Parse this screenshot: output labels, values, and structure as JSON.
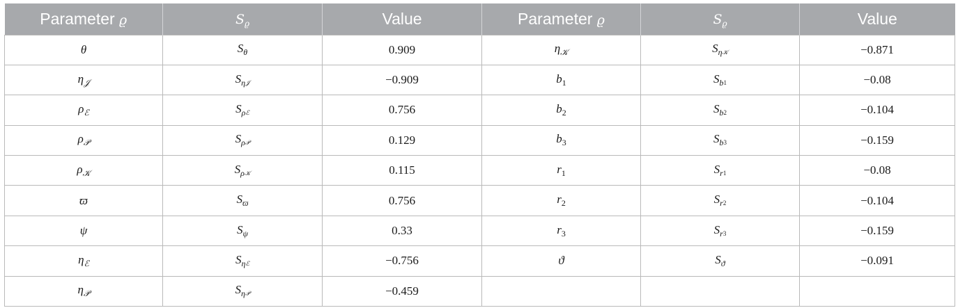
{
  "table": {
    "headers": [
      "Parameter ϱ",
      "S_ϱ",
      "Value",
      "Parameter ϱ",
      "S_ϱ",
      "Value"
    ],
    "header_parts": [
      {
        "text": "Parameter",
        "sym": "ϱ"
      },
      {
        "base": "S",
        "sub": "ϱ"
      },
      {
        "text": "Value"
      },
      {
        "text": "Parameter",
        "sym": "ϱ"
      },
      {
        "base": "S",
        "sub": "ϱ"
      },
      {
        "text": "Value"
      }
    ],
    "rows": [
      [
        {
          "base": "θ"
        },
        {
          "base": "S",
          "sub": "θ"
        },
        {
          "value": "0.909"
        },
        {
          "base": "η",
          "sub": "𝒦"
        },
        {
          "base": "S",
          "sub": "η",
          "sub2": "𝒦"
        },
        {
          "value": "−0.871"
        }
      ],
      [
        {
          "base": "η",
          "sub": "𝒥"
        },
        {
          "base": "S",
          "sub": "η",
          "sub2": "𝒥"
        },
        {
          "value": "−0.909"
        },
        {
          "base": "b",
          "sub": "1"
        },
        {
          "base": "S",
          "sub": "b",
          "sub2": "1"
        },
        {
          "value": "−0.08"
        }
      ],
      [
        {
          "base": "ρ",
          "sub": "ℰ"
        },
        {
          "base": "S",
          "sub": "ρ",
          "sub2": "ℰ"
        },
        {
          "value": "0.756"
        },
        {
          "base": "b",
          "sub": "2"
        },
        {
          "base": "S",
          "sub": "b",
          "sub2": "2"
        },
        {
          "value": "−0.104"
        }
      ],
      [
        {
          "base": "ρ",
          "sub": "𝒫"
        },
        {
          "base": "S",
          "sub": "ρ",
          "sub2": "𝒫"
        },
        {
          "value": "0.129"
        },
        {
          "base": "b",
          "sub": "3"
        },
        {
          "base": "S",
          "sub": "b",
          "sub2": "3"
        },
        {
          "value": "−0.159"
        }
      ],
      [
        {
          "base": "ρ",
          "sub": "𝒦"
        },
        {
          "base": "S",
          "sub": "ρ",
          "sub2": "𝒦"
        },
        {
          "value": "0.115"
        },
        {
          "base": "r",
          "sub": "1"
        },
        {
          "base": "S",
          "sub": "r",
          "sub2": "1"
        },
        {
          "value": "−0.08"
        }
      ],
      [
        {
          "base": "ϖ"
        },
        {
          "base": "S",
          "sub": "ϖ"
        },
        {
          "value": "0.756"
        },
        {
          "base": "r",
          "sub": "2"
        },
        {
          "base": "S",
          "sub": "r",
          "sub2": "2"
        },
        {
          "value": "−0.104"
        }
      ],
      [
        {
          "base": "ψ"
        },
        {
          "base": "S",
          "sub": "ψ"
        },
        {
          "value": "0.33"
        },
        {
          "base": "r",
          "sub": "3"
        },
        {
          "base": "S",
          "sub": "r",
          "sub2": "3"
        },
        {
          "value": "−0.159"
        }
      ],
      [
        {
          "base": "η",
          "sub": "ℰ"
        },
        {
          "base": "S",
          "sub": "η",
          "sub2": "ℰ"
        },
        {
          "value": "−0.756"
        },
        {
          "base": "ϑ"
        },
        {
          "base": "S",
          "sub": "ϑ"
        },
        {
          "value": "−0.091"
        }
      ],
      [
        {
          "base": "η",
          "sub": "𝒫"
        },
        {
          "base": "S",
          "sub": "η",
          "sub2": "𝒫"
        },
        {
          "value": "−0.459"
        },
        {},
        {},
        {}
      ]
    ]
  }
}
